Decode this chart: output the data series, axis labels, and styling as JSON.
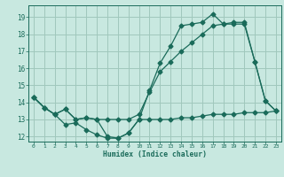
{
  "title": "",
  "xlabel": "Humidex (Indice chaleur)",
  "ylabel": "",
  "xlim": [
    -0.5,
    23.5
  ],
  "ylim": [
    11.7,
    19.7
  ],
  "xticks": [
    0,
    1,
    2,
    3,
    4,
    5,
    6,
    7,
    8,
    9,
    10,
    11,
    12,
    13,
    14,
    15,
    16,
    17,
    18,
    19,
    20,
    21,
    22,
    23
  ],
  "yticks": [
    12,
    13,
    14,
    15,
    16,
    17,
    18,
    19
  ],
  "bg_color": "#c8e8e0",
  "grid_color": "#a0c8bc",
  "line_color": "#1a6b5a",
  "line1_x": [
    0,
    1,
    2,
    3,
    4,
    5,
    6,
    7,
    8,
    9,
    10,
    11,
    12,
    13,
    14,
    15,
    16,
    17,
    18,
    19,
    20,
    21,
    22,
    23
  ],
  "line1_y": [
    14.3,
    13.7,
    13.3,
    13.6,
    13.0,
    13.1,
    13.0,
    12.0,
    11.9,
    12.2,
    13.0,
    13.0,
    13.0,
    13.0,
    13.1,
    13.1,
    13.2,
    13.3,
    13.3,
    13.3,
    13.4,
    13.4,
    13.4,
    13.5
  ],
  "line2_x": [
    0,
    1,
    2,
    3,
    4,
    5,
    6,
    7,
    8,
    9,
    10,
    11,
    12,
    13,
    14,
    15,
    16,
    17,
    18,
    19,
    20,
    21,
    22,
    23
  ],
  "line2_y": [
    14.3,
    13.7,
    13.3,
    12.7,
    12.8,
    12.4,
    12.1,
    11.9,
    11.9,
    12.2,
    13.0,
    14.7,
    16.3,
    17.3,
    18.5,
    18.6,
    18.7,
    19.2,
    18.6,
    18.6,
    18.6,
    16.4,
    14.1,
    13.5
  ],
  "line3_x": [
    0,
    1,
    2,
    3,
    4,
    5,
    6,
    7,
    8,
    9,
    10,
    11,
    12,
    13,
    14,
    15,
    16,
    17,
    18,
    19,
    20,
    21,
    22,
    23
  ],
  "line3_y": [
    14.3,
    13.7,
    13.3,
    13.6,
    13.0,
    13.1,
    13.0,
    13.0,
    13.0,
    13.0,
    13.3,
    14.6,
    15.8,
    16.4,
    17.0,
    17.5,
    18.0,
    18.5,
    18.6,
    18.7,
    18.7,
    16.4,
    14.1,
    13.5
  ]
}
